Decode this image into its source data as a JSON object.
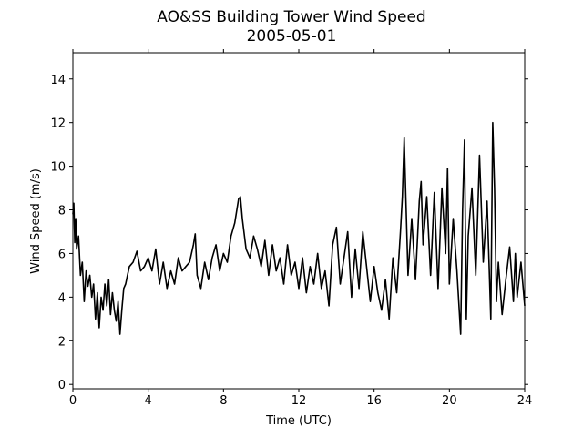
{
  "chart_data": {
    "type": "line",
    "title": "AO&SS Building Tower Wind Speed",
    "subtitle": "2005-05-01",
    "xlabel": "Time (UTC)",
    "ylabel": "Wind Speed (m/s)",
    "xlim": [
      0,
      24
    ],
    "ylim": [
      -0.2,
      15.2
    ],
    "xticks": [
      0,
      4,
      8,
      12,
      16,
      20,
      24
    ],
    "yticks": [
      0,
      2,
      4,
      6,
      8,
      10,
      12,
      14
    ],
    "grid": false,
    "legend": "none",
    "line_color": "#000000",
    "series": [
      {
        "x": [
          0,
          0.05,
          0.1,
          0.15,
          0.2,
          0.3,
          0.4,
          0.5,
          0.6,
          0.7,
          0.8,
          0.9,
          1.0,
          1.1,
          1.2,
          1.3,
          1.4,
          1.5,
          1.6,
          1.7,
          1.8,
          1.9,
          2.0,
          2.1,
          2.2,
          2.3,
          2.4,
          2.5,
          2.6,
          2.7,
          2.8,
          2.9,
          3.0,
          3.2,
          3.4,
          3.6,
          3.8,
          3.9,
          4.0,
          4.2,
          4.4,
          4.6,
          4.8,
          5.0,
          5.2,
          5.4,
          5.6,
          5.8,
          6.0,
          6.2,
          6.4,
          6.5,
          6.6,
          6.8,
          7.0,
          7.2,
          7.4,
          7.6,
          7.8,
          8.0,
          8.2,
          8.4,
          8.6,
          8.8,
          8.9,
          9.0,
          9.2,
          9.4,
          9.6,
          9.8,
          10.0,
          10.2,
          10.4,
          10.6,
          10.8,
          11.0,
          11.2,
          11.4,
          11.6,
          11.8,
          12.0,
          12.2,
          12.4,
          12.6,
          12.8,
          13.0,
          13.2,
          13.4,
          13.6,
          13.8,
          14.0,
          14.2,
          14.4,
          14.6,
          14.8,
          15.0,
          15.2,
          15.4,
          15.6,
          15.8,
          16.0,
          16.2,
          16.4,
          16.6,
          16.8,
          17.0,
          17.2,
          17.4,
          17.5,
          17.6,
          17.8,
          18.0,
          18.2,
          18.4,
          18.5,
          18.6,
          18.8,
          19.0,
          19.2,
          19.4,
          19.6,
          19.8,
          19.9,
          20.0,
          20.2,
          20.4,
          20.6,
          20.7,
          20.8,
          20.9,
          21.0,
          21.2,
          21.4,
          21.6,
          21.8,
          22.0,
          22.2,
          22.3,
          22.4,
          22.5,
          22.6,
          22.8,
          23.0,
          23.2,
          23.4,
          23.5,
          23.6,
          23.8,
          24.0
        ],
        "values": [
          7.8,
          8.3,
          6.5,
          7.6,
          6.2,
          6.8,
          5.0,
          5.6,
          3.8,
          5.2,
          4.5,
          5.0,
          4.0,
          4.6,
          3.0,
          4.2,
          2.6,
          4.0,
          3.4,
          4.6,
          3.6,
          4.8,
          3.2,
          4.2,
          3.4,
          2.9,
          3.8,
          2.3,
          3.4,
          4.4,
          4.6,
          5.0,
          5.4,
          5.6,
          6.1,
          5.2,
          5.4,
          5.6,
          5.8,
          5.2,
          6.2,
          4.6,
          5.6,
          4.4,
          5.2,
          4.6,
          5.8,
          5.2,
          5.4,
          5.6,
          6.4,
          6.9,
          5.0,
          4.4,
          5.6,
          4.8,
          5.8,
          6.4,
          5.2,
          6.0,
          5.6,
          6.8,
          7.4,
          8.5,
          8.6,
          7.6,
          6.2,
          5.8,
          6.8,
          6.2,
          5.4,
          6.6,
          5.0,
          6.4,
          5.2,
          5.8,
          4.6,
          6.4,
          5.0,
          5.6,
          4.4,
          5.8,
          4.2,
          5.4,
          4.6,
          6.0,
          4.4,
          5.2,
          3.6,
          6.4,
          7.2,
          4.6,
          5.8,
          7.0,
          4.0,
          6.2,
          4.4,
          7.0,
          5.4,
          3.8,
          5.4,
          4.2,
          3.4,
          4.8,
          3.0,
          5.8,
          4.2,
          7.0,
          8.6,
          11.3,
          5.0,
          7.6,
          4.8,
          8.4,
          9.3,
          6.4,
          8.6,
          5.0,
          8.8,
          4.4,
          9.0,
          6.0,
          9.9,
          4.6,
          7.6,
          5.2,
          2.3,
          8.0,
          11.2,
          3.0,
          6.8,
          9.0,
          5.0,
          10.5,
          5.6,
          8.4,
          3.0,
          12.0,
          9.0,
          3.8,
          5.6,
          3.2,
          4.8,
          6.3,
          3.8,
          6.0,
          4.0,
          5.6,
          3.6
        ]
      }
    ]
  }
}
